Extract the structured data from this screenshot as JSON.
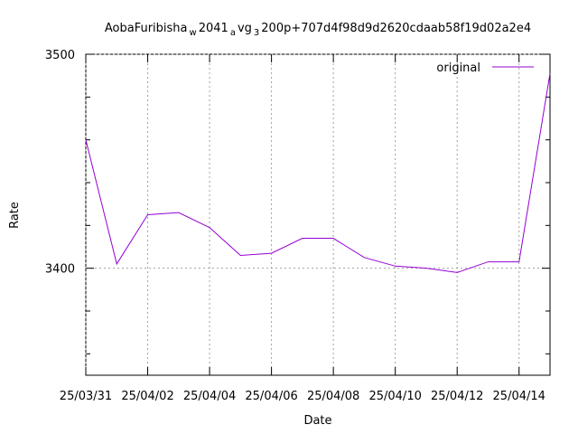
{
  "chart_data": {
    "type": "line",
    "title": [
      "AobaFuribisha",
      "w",
      "2041",
      "a",
      "vg",
      "3",
      "200p+707d4f98d9d2620cdaab58f19d02a2e4"
    ],
    "x_label": "Date",
    "y_label": "Rate",
    "x": [
      "25/03/31",
      "25/04/01",
      "25/04/02",
      "25/04/03",
      "25/04/04",
      "25/04/05",
      "25/04/06",
      "25/04/07",
      "25/04/08",
      "25/04/09",
      "25/04/10",
      "25/04/11",
      "25/04/12",
      "25/04/13",
      "25/04/14",
      "25/04/15"
    ],
    "series": [
      {
        "name": "original",
        "color": "#9400d3",
        "values": [
          3460,
          3402,
          3425,
          3426,
          3419,
          3406,
          3407,
          3414,
          3414,
          3405,
          3401,
          3400,
          3398,
          3403,
          3403,
          3491
        ]
      }
    ],
    "xlim": [
      "25/03/31",
      "25/04/15"
    ],
    "xticks": [
      "25/03/31",
      "25/04/02",
      "25/04/04",
      "25/04/06",
      "25/04/08",
      "25/04/10",
      "25/04/12",
      "25/04/14"
    ],
    "ylim": [
      3350,
      3500
    ],
    "yticks": [
      3400,
      3500
    ],
    "yminor": [
      3360,
      3380,
      3420,
      3440,
      3460,
      3480
    ],
    "grid": true,
    "legend": "top-right"
  }
}
